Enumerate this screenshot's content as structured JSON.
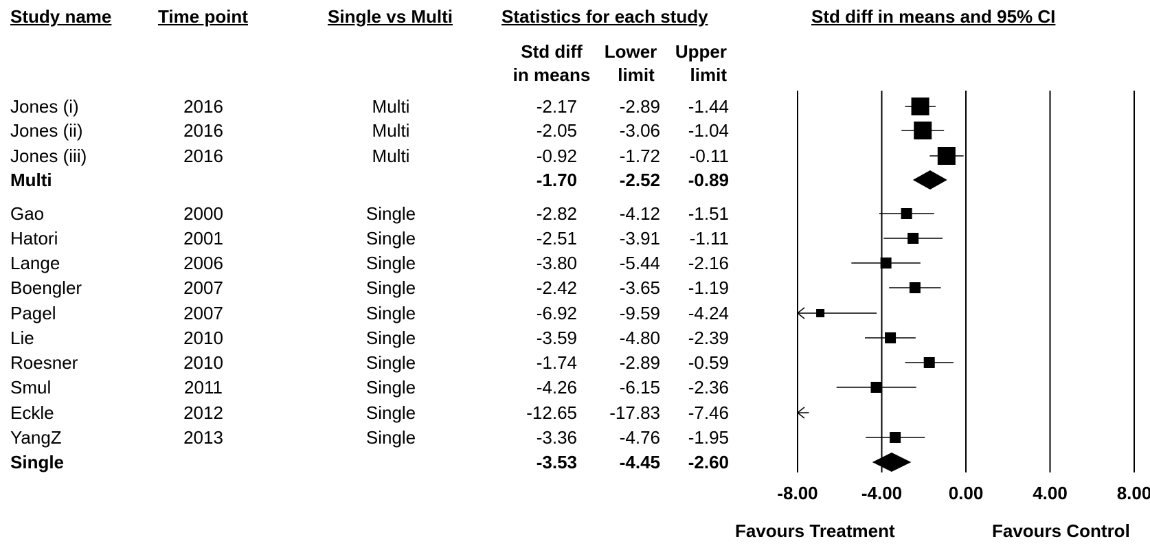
{
  "headers": {
    "study_name": "Study name",
    "time_point": "Time point",
    "single_vs_multi": "Single vs Multi",
    "statistics": "Statistics for each study",
    "plot": "Std diff in means and 95% CI"
  },
  "subheaders": {
    "std_diff_1": "Std diff",
    "std_diff_2": "in means",
    "lower_1": "Lower",
    "lower_2": "limit",
    "upper_1": "Upper",
    "upper_2": "limit"
  },
  "footer": {
    "favours_treatment": "Favours Treatment",
    "favours_control": "Favours Control"
  },
  "chart_data": {
    "type": "forest",
    "xlim": [
      -8,
      8
    ],
    "x_ticks": [
      "-8.00",
      "-4.00",
      "0.00",
      "4.00",
      "8.00"
    ],
    "rows": [
      {
        "study": "Jones (i)",
        "time": "2016",
        "group": "Multi",
        "est": "-2.17",
        "lower": "-2.89",
        "upper": "-1.44",
        "kind": "study",
        "weight": "large"
      },
      {
        "study": "Jones (ii)",
        "time": "2016",
        "group": "Multi",
        "est": "-2.05",
        "lower": "-3.06",
        "upper": "-1.04",
        "kind": "study",
        "weight": "large"
      },
      {
        "study": "Jones (iii)",
        "time": "2016",
        "group": "Multi",
        "est": "-0.92",
        "lower": "-1.72",
        "upper": "-0.11",
        "kind": "study",
        "weight": "large"
      },
      {
        "study": "Multi",
        "time": "",
        "group": "",
        "est": "-1.70",
        "lower": "-2.52",
        "upper": "-0.89",
        "kind": "summary"
      },
      {
        "study": "Gao",
        "time": "2000",
        "group": "Single",
        "est": "-2.82",
        "lower": "-4.12",
        "upper": "-1.51",
        "kind": "study",
        "weight": "small"
      },
      {
        "study": "Hatori",
        "time": "2001",
        "group": "Single",
        "est": "-2.51",
        "lower": "-3.91",
        "upper": "-1.11",
        "kind": "study",
        "weight": "small"
      },
      {
        "study": "Lange",
        "time": "2006",
        "group": "Single",
        "est": "-3.80",
        "lower": "-5.44",
        "upper": "-2.16",
        "kind": "study",
        "weight": "small"
      },
      {
        "study": "Boengler",
        "time": "2007",
        "group": "Single",
        "est": "-2.42",
        "lower": "-3.65",
        "upper": "-1.19",
        "kind": "study",
        "weight": "small"
      },
      {
        "study": "Pagel",
        "time": "2007",
        "group": "Single",
        "est": "-6.92",
        "lower": "-9.59",
        "upper": "-4.24",
        "kind": "study",
        "weight": "smaller"
      },
      {
        "study": "Lie",
        "time": "2010",
        "group": "Single",
        "est": "-3.59",
        "lower": "-4.80",
        "upper": "-2.39",
        "kind": "study",
        "weight": "small"
      },
      {
        "study": "Roesner",
        "time": "2010",
        "group": "Single",
        "est": "-1.74",
        "lower": "-2.89",
        "upper": "-0.59",
        "kind": "study",
        "weight": "small"
      },
      {
        "study": "Smul",
        "time": "2011",
        "group": "Single",
        "est": "-4.26",
        "lower": "-6.15",
        "upper": "-2.36",
        "kind": "study",
        "weight": "small"
      },
      {
        "study": "Eckle",
        "time": "2012",
        "group": "Single",
        "est": "-12.65",
        "lower": "-17.83",
        "upper": "-7.46",
        "kind": "study",
        "weight": "none"
      },
      {
        "study": "YangZ",
        "time": "2013",
        "group": "Single",
        "est": "-3.36",
        "lower": "-4.76",
        "upper": "-1.95",
        "kind": "study",
        "weight": "small"
      },
      {
        "study": "Single",
        "time": "",
        "group": "",
        "est": "-3.53",
        "lower": "-4.45",
        "upper": "-2.60",
        "kind": "summary"
      }
    ]
  }
}
